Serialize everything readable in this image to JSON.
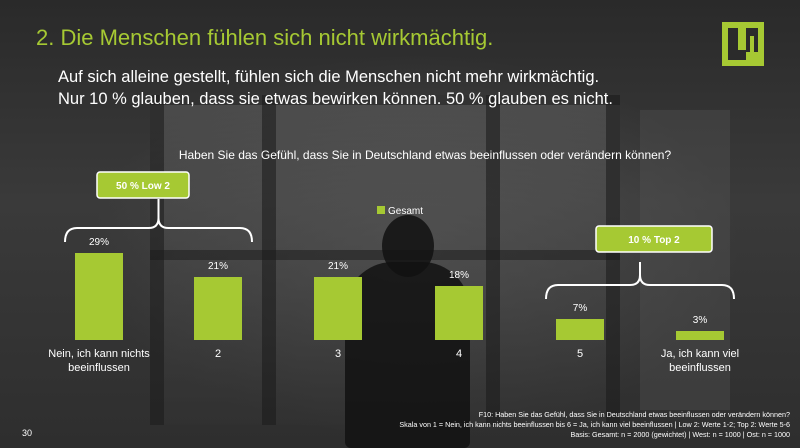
{
  "slide": {
    "title": "2. Die Menschen fühlen sich nicht wirkmächtig.",
    "subtitle_line1": "Auf sich alleine gestellt, fühlen sich die Menschen nicht mehr wirkmächtig.",
    "subtitle_line2": "Nur 10 % glauben, dass sie etwas bewirken können. 50 % glauben es nicht.",
    "question": "Haben Sie das Gefühl, dass Sie in Deutschland etwas beeinflussen oder verändern können?",
    "page_number": "30",
    "footnote_1": "F10: Haben Sie das Gefühl, dass Sie in Deutschland etwas beeinflussen oder verändern können?",
    "footnote_2": "Skala von 1 = Nein, ich kann nichts beeinflussen bis 6 = Ja, ich kann viel beeinflussen | Low 2: Werte 1-2; Top 2: Werte 5-6",
    "footnote_3": "Basis: Gesamt: n = 2000 (gewichtet) | West: n = 1000 | Ost: n = 1000",
    "accent_color": "#a6c933",
    "logo_icon": "brand-logo-icon"
  },
  "chart_data": {
    "type": "bar",
    "categories": [
      [
        "Nein, ich kann nichts",
        "beeinflussen"
      ],
      [
        "2"
      ],
      [
        "3"
      ],
      [
        "4"
      ],
      [
        "5"
      ],
      [
        "Ja, ich kann viel",
        "beeinflussen"
      ]
    ],
    "series": [
      {
        "name": "Gesamt",
        "values": [
          29,
          21,
          21,
          18,
          7,
          3
        ],
        "labels": [
          "29%",
          "21%",
          "21%",
          "18%",
          "7%",
          "3%"
        ],
        "color": "#a6c933"
      }
    ],
    "ylim": [
      0,
      29
    ],
    "legend_position": "top-center",
    "grid": false,
    "annotations": [
      {
        "text": "50 % Low 2",
        "categories_spanned": [
          0,
          1
        ]
      },
      {
        "text": "10 % Top 2",
        "categories_spanned": [
          4,
          5
        ]
      }
    ]
  }
}
